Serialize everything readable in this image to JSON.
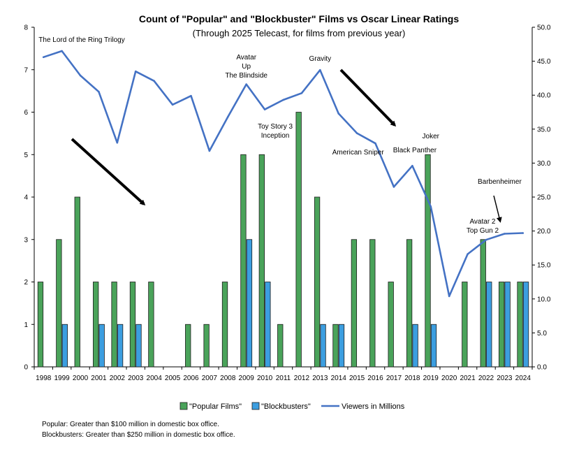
{
  "chart_data": {
    "type": "bar",
    "title": "Count of \"Popular\" and \"Blockbuster\" Films vs Oscar Linear Ratings",
    "subtitle": "(Through 2025 Telecast, for films from previous year)",
    "categories": [
      "1998",
      "1999",
      "2000",
      "2001",
      "2002",
      "2003",
      "2004",
      "2005",
      "2006",
      "2007",
      "2008",
      "2009",
      "2010",
      "2011",
      "2012",
      "2013",
      "2014",
      "2015",
      "2016",
      "2017",
      "2018",
      "2019",
      "2020",
      "2021",
      "2022",
      "2023",
      "2024"
    ],
    "series": [
      {
        "name": "\"Popular Films\"",
        "type": "bar",
        "axis": "left",
        "color": "#4aa35a",
        "values": [
          2,
          3,
          4,
          2,
          2,
          2,
          2,
          0,
          1,
          1,
          2,
          5,
          5,
          1,
          6,
          4,
          1,
          3,
          3,
          2,
          3,
          5,
          0,
          2,
          3,
          2,
          2
        ]
      },
      {
        "name": "\"Blockbusters\"",
        "type": "bar",
        "axis": "left",
        "color": "#3c9ee0",
        "values": [
          0,
          1,
          0,
          1,
          1,
          1,
          0,
          0,
          0,
          0,
          0,
          3,
          2,
          0,
          0,
          1,
          1,
          0,
          0,
          0,
          1,
          1,
          0,
          0,
          2,
          2,
          2
        ]
      },
      {
        "name": "Viewers in Millions",
        "type": "line",
        "axis": "right",
        "color": "#4472c4",
        "values": [
          45.6,
          46.5,
          42.9,
          40.5,
          33.0,
          43.5,
          42.1,
          38.6,
          39.9,
          31.8,
          36.8,
          41.6,
          37.9,
          39.3,
          40.3,
          43.7,
          37.3,
          34.4,
          32.9,
          26.5,
          29.6,
          23.6,
          10.4,
          16.6,
          18.7,
          19.6,
          19.7
        ]
      }
    ],
    "y_left": {
      "range": [
        0,
        8
      ],
      "ticks": [
        "0",
        "1",
        "2",
        "3",
        "4",
        "5",
        "6",
        "7",
        "8"
      ]
    },
    "y_right": {
      "range": [
        0,
        50
      ],
      "ticks": [
        "0.0",
        "5.0",
        "10.0",
        "15.0",
        "20.0",
        "25.0",
        "30.0",
        "35.0",
        "40.0",
        "45.0",
        "50.0"
      ]
    },
    "grid": false,
    "legend_position": "bottom",
    "annotations": [
      {
        "lines": [
          "The Lord of the Ring Trilogy"
        ],
        "year": "1999"
      },
      {
        "lines": [
          "Avatar",
          "Up",
          "The Blindside"
        ],
        "year": "2009"
      },
      {
        "lines": [
          "Gravity"
        ],
        "year": "2013"
      },
      {
        "lines": [
          "Toy Story 3",
          "Inception"
        ],
        "year": "2010"
      },
      {
        "lines": [
          "American Sniper"
        ],
        "year": "2014"
      },
      {
        "lines": [
          "Black Panther"
        ],
        "year": "2017"
      },
      {
        "lines": [
          "Joker"
        ],
        "year": "2019"
      },
      {
        "lines": [
          "Barbenheimer"
        ],
        "year": "2023"
      },
      {
        "lines": [
          "Avatar 2",
          "Top Gun 2"
        ],
        "year": "2022"
      }
    ],
    "footnotes": [
      "Popular: Greater than $100 million in domestic box office.",
      "Blockbusters: Greater than $250 million in domestic box office."
    ]
  }
}
